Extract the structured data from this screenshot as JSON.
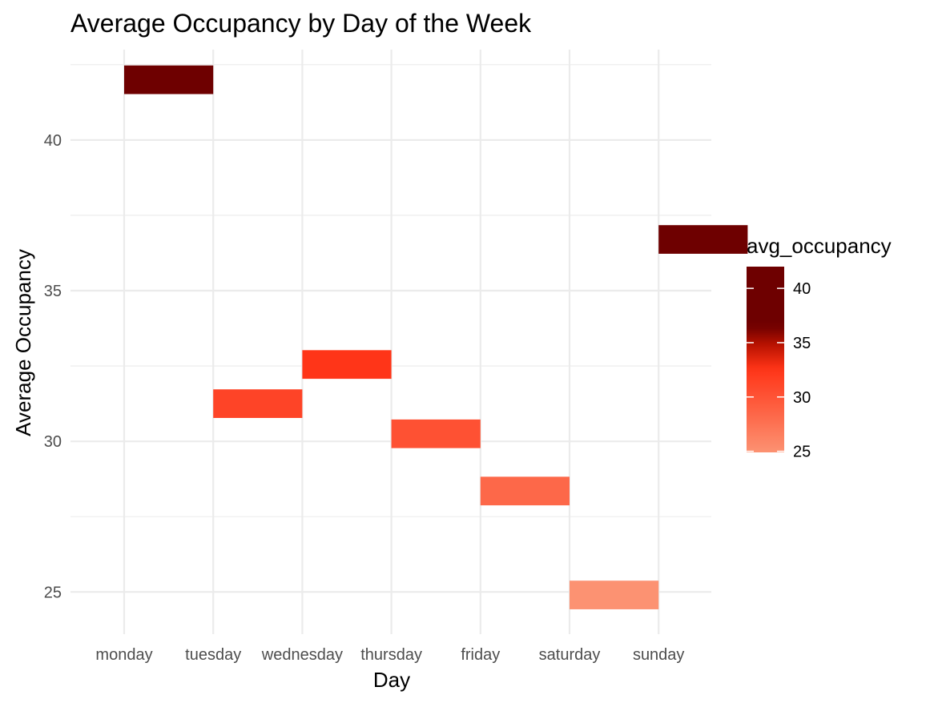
{
  "chart_data": {
    "type": "tile",
    "title": "Average Occupancy by Day of the Week",
    "xlabel": "Day",
    "ylabel": "Average Occupancy",
    "categories": [
      "monday",
      "tuesday",
      "wednesday",
      "thursday",
      "friday",
      "saturday",
      "sunday"
    ],
    "values": [
      42.0,
      31.25,
      32.55,
      30.25,
      28.35,
      24.9,
      36.7
    ],
    "tile_width_days": 1,
    "tile_height": 0.95,
    "x_tile_offset": 0.5,
    "ylim": [
      23.6,
      43.0
    ],
    "yticks": [
      25,
      30,
      35,
      40
    ],
    "grid": true,
    "legend": {
      "title": "avg_occupancy",
      "position": "right",
      "ticks": [
        25,
        30,
        35,
        40
      ],
      "range": [
        24.9,
        42.0
      ],
      "colors": {
        "low": "#fc9272",
        "mid": "#ff3417",
        "high": "#6e0000"
      }
    }
  }
}
